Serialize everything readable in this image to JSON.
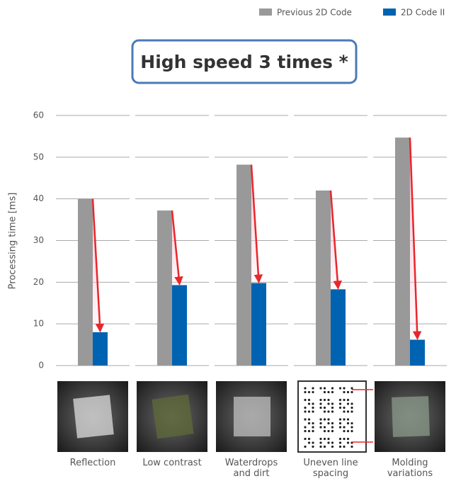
{
  "chart_data": {
    "type": "bar",
    "title": "High speed 3 times *",
    "y_label": "Processing time [ms]",
    "categories": [
      "Reflection",
      "Low contrast",
      "Waterdrops and dirt",
      "Uneven line spacing",
      "Molding variations"
    ],
    "series": [
      {
        "name": "Previous 2D Code",
        "color": "#999999",
        "values": [
          40,
          37.2,
          48.2,
          42,
          54.7
        ]
      },
      {
        "name": "2D Code II",
        "color": "#0063b1",
        "values": [
          8,
          19.3,
          19.8,
          18.3,
          6.2
        ]
      }
    ],
    "ylim": [
      0,
      60
    ],
    "yticks": [
      0,
      10,
      20,
      30,
      40,
      50,
      60
    ],
    "grid": true,
    "legend": "top-right"
  }
}
